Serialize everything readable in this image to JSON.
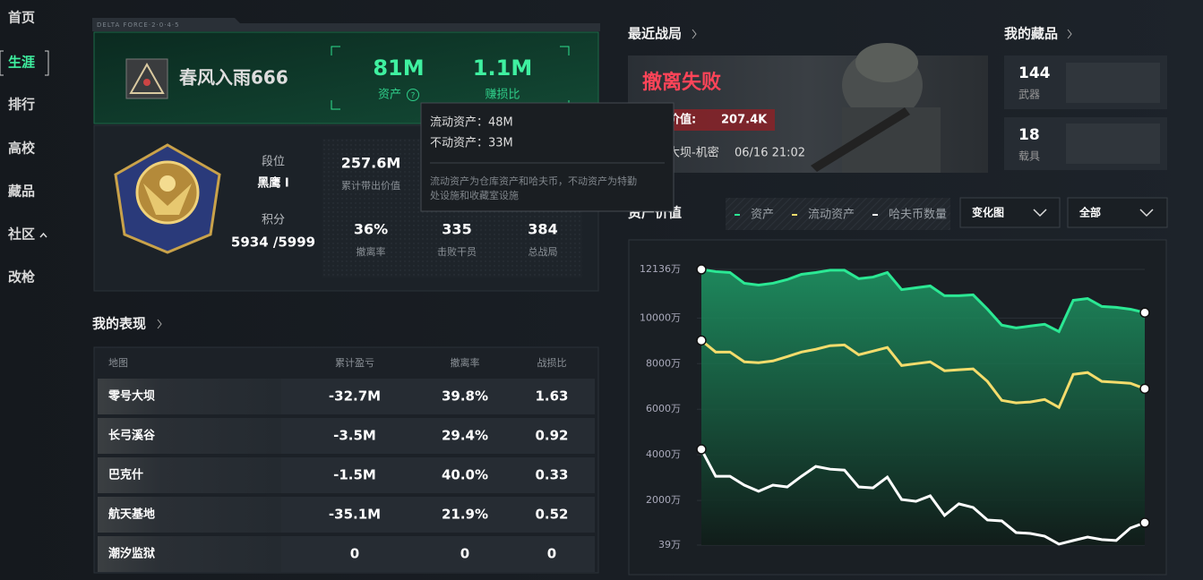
{
  "nav": [
    "首页",
    "生涯",
    "排行",
    "高校",
    "藏品",
    "社区",
    "改枪"
  ],
  "profile": {
    "brand": "DELTA FORCE·2·0·4·5",
    "name": "春风入雨666",
    "assets": {
      "value": "81M",
      "label": "资产"
    },
    "ratio": {
      "value": "1.1M",
      "label": "赚损比"
    },
    "rank_label": "段位",
    "rank": "黑鹰 I",
    "score_label": "积分",
    "score": "5934 /5999",
    "stats": [
      {
        "value": "257.6M",
        "label": "累计带出价值"
      },
      {
        "value": "36%",
        "label": "撤离率"
      },
      {
        "value": "335",
        "label": "击败干员"
      },
      {
        "value": "384",
        "label": "总战局"
      }
    ]
  },
  "tooltip": {
    "lines": [
      "流动资产：48M",
      "不动资产：33M"
    ],
    "note": [
      "流动资产为仓库资产和哈夫币，不动资产为特勤",
      "处设施和收藏室设施"
    ]
  },
  "performance": {
    "title": "我的表现",
    "columns": [
      "地图",
      "累计盈亏",
      "撤离率",
      "战损比"
    ],
    "rows": [
      [
        "零号大坝",
        "-32.7M",
        "39.8%",
        "1.63"
      ],
      [
        "长弓溪谷",
        "-3.5M",
        "29.4%",
        "0.92"
      ],
      [
        "巴克什",
        "-1.5M",
        "40.0%",
        "0.33"
      ],
      [
        "航天基地",
        "-35.1M",
        "21.9%",
        "0.52"
      ],
      [
        "潮汐监狱",
        "0",
        "0",
        "0"
      ]
    ]
  },
  "recent": {
    "title": "最近战局",
    "result": "撤离失败",
    "value_label": "带出价值:",
    "value": "207.4K",
    "map": "零号大坝-机密",
    "time": "06/16 21:02"
  },
  "collection": {
    "title": "我的藏品",
    "items": [
      {
        "count": "144",
        "label": "武器"
      },
      {
        "count": "18",
        "label": "载具"
      }
    ]
  },
  "dropdowns": [
    "变化图",
    "全部"
  ],
  "chart_data": {
    "type": "line",
    "title": "资产价值",
    "series": [
      {
        "name": "资产",
        "color": "#2be894",
        "area": true,
        "values": [
          12136,
          12040,
          12000,
          11530,
          11450,
          11530,
          11690,
          11920,
          12000,
          12100,
          12100,
          11730,
          11800,
          12000,
          11250,
          11330,
          11410,
          10980,
          10980,
          11020,
          10390,
          9690,
          9570,
          9650,
          9730,
          9410,
          10780,
          10860,
          10510,
          10470,
          10390,
          10240
        ]
      },
      {
        "name": "流动资产",
        "color": "#f4dc6c",
        "values": [
          9020,
          8510,
          8510,
          8080,
          8040,
          8120,
          8310,
          8510,
          8630,
          8790,
          8820,
          8390,
          8550,
          8710,
          7920,
          8000,
          8080,
          7690,
          7730,
          7770,
          7220,
          6390,
          6280,
          6320,
          6430,
          6080,
          7530,
          7610,
          7220,
          7180,
          7140,
          6900
        ]
      },
      {
        "name": "哈夫币数量",
        "color": "#ffffff",
        "values": [
          4240,
          3060,
          3060,
          2670,
          2400,
          2670,
          2590,
          3060,
          3490,
          3370,
          3330,
          2590,
          2550,
          3020,
          2040,
          1960,
          2200,
          1340,
          1850,
          1690,
          1140,
          1100,
          590,
          550,
          430,
          80,
          240,
          390,
          280,
          240,
          790,
          1020
        ]
      }
    ],
    "ylim": [
      39,
      12136
    ],
    "yticks": [
      {
        "value": 12136,
        "label": "12136万"
      },
      {
        "value": 10000,
        "label": "10000万"
      },
      {
        "value": 8000,
        "label": "8000万"
      },
      {
        "value": 6000,
        "label": "6000万"
      },
      {
        "value": 4000,
        "label": "4000万"
      },
      {
        "value": 2000,
        "label": "2000万"
      },
      {
        "value": 39,
        "label": "39万"
      }
    ],
    "grid": true
  }
}
